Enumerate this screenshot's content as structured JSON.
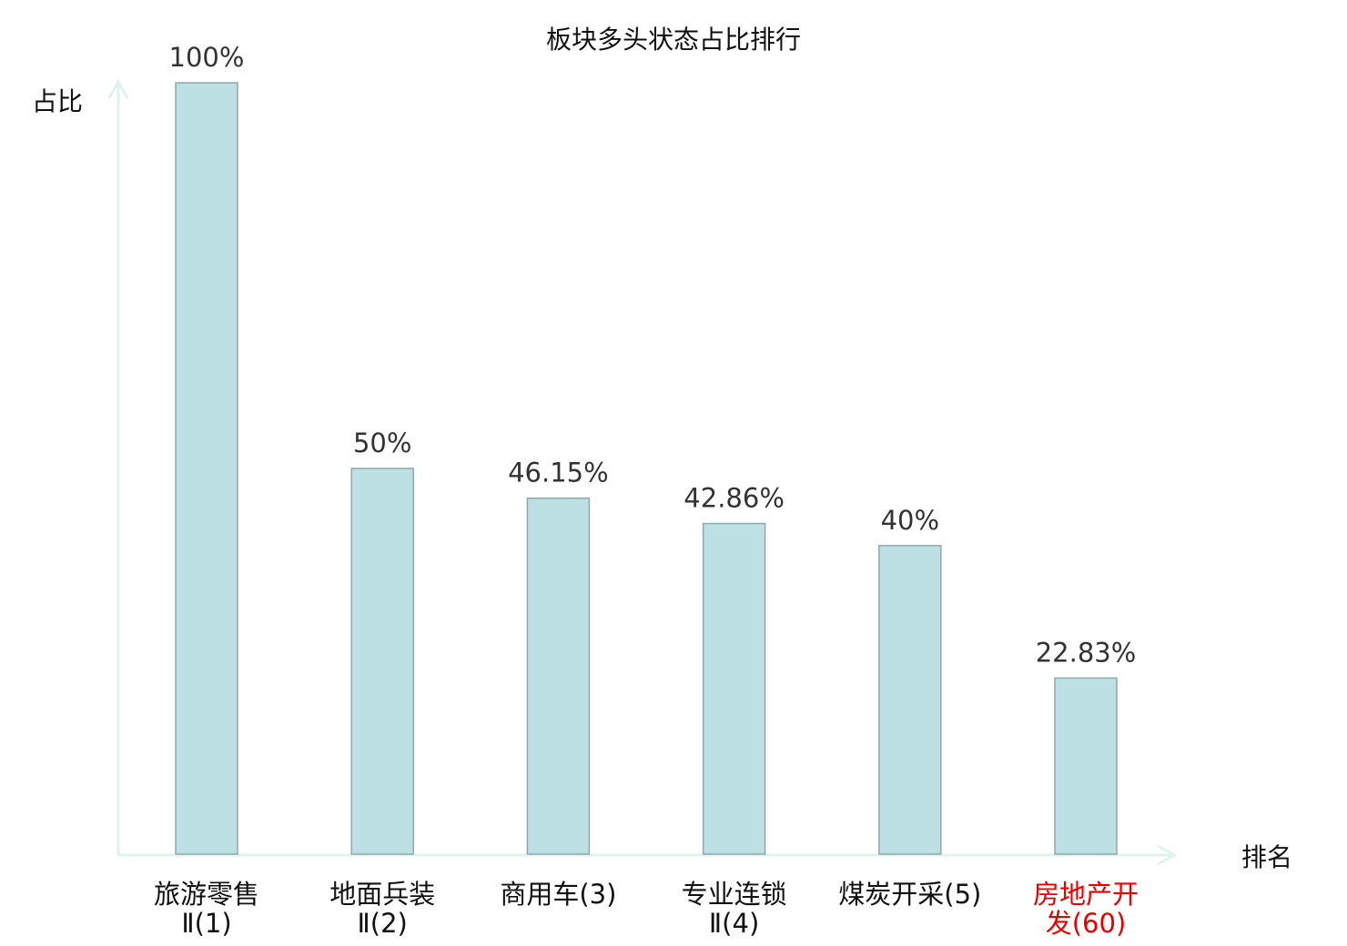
{
  "chart_data": {
    "type": "bar",
    "title": "板块多头状态占比排行",
    "ylabel": "占比",
    "xlabel": "排名",
    "categories": [
      "旅游零售Ⅱ(1)",
      "地面兵装Ⅱ(2)",
      "商用车(3)",
      "专业连锁Ⅱ(4)",
      "煤炭开采(5)",
      "房地产开发(60)"
    ],
    "values": [
      100,
      50,
      46.15,
      42.86,
      40,
      22.83
    ],
    "value_labels": [
      "100%",
      "50%",
      "46.15%",
      "42.86%",
      "40%",
      "22.83%"
    ],
    "highlighted_category_index": 5,
    "ylim": [
      0,
      100
    ],
    "grid": false,
    "colors": {
      "bar_fill": "#bce0e3",
      "bar_stroke": "#8fa9aa",
      "axis": "#dff2ef",
      "highlight_label": "#e60000",
      "text": "#333333"
    }
  }
}
